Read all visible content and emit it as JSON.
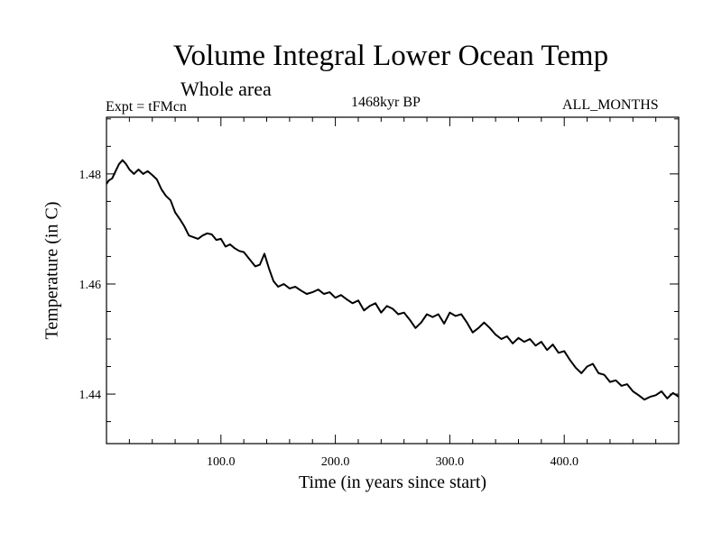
{
  "chart_data": {
    "type": "line",
    "title": "Volume Integral Lower Ocean Temp",
    "subtitle": "Whole area",
    "expt_label": "Expt = tFMcn",
    "era_label": "1468kyr BP",
    "months_label": "ALL_MONTHS",
    "xlabel": "Time (in years since start)",
    "ylabel": "Temperature (in C)",
    "xlim": [
      0,
      500
    ],
    "ylim": [
      1.431,
      1.4903
    ],
    "x_ticks": [
      {
        "value": 100,
        "label": "100.0"
      },
      {
        "value": 200,
        "label": "200.0"
      },
      {
        "value": 300,
        "label": "300.0"
      },
      {
        "value": 400,
        "label": "400.0"
      }
    ],
    "y_ticks": [
      {
        "value": 1.44,
        "label": "1.44"
      },
      {
        "value": 1.46,
        "label": "1.46"
      },
      {
        "value": 1.48,
        "label": "1.48"
      }
    ],
    "series": [
      {
        "name": "Volume Integral Lower Ocean Temp",
        "x": [
          0,
          2,
          5,
          8,
          11,
          14,
          17,
          20,
          24,
          28,
          32,
          36,
          40,
          44,
          48,
          52,
          56,
          60,
          64,
          68,
          72,
          76,
          80,
          84,
          88,
          92,
          96,
          100,
          104,
          108,
          112,
          116,
          120,
          125,
          130,
          134,
          138,
          142,
          146,
          150,
          155,
          160,
          165,
          170,
          175,
          180,
          185,
          190,
          195,
          200,
          205,
          210,
          215,
          220,
          225,
          230,
          235,
          240,
          245,
          250,
          255,
          260,
          265,
          270,
          275,
          280,
          285,
          290,
          295,
          300,
          305,
          310,
          315,
          320,
          325,
          330,
          335,
          340,
          345,
          350,
          355,
          360,
          365,
          370,
          375,
          380,
          385,
          390,
          395,
          400,
          405,
          410,
          415,
          420,
          425,
          430,
          435,
          440,
          445,
          450,
          455,
          460,
          465,
          470,
          475,
          480,
          485,
          490,
          495,
          500
        ],
        "y": [
          1.4782,
          1.4788,
          1.4792,
          1.4805,
          1.4818,
          1.4825,
          1.4818,
          1.4808,
          1.48,
          1.4808,
          1.48,
          1.4805,
          1.4798,
          1.479,
          1.4772,
          1.476,
          1.4752,
          1.473,
          1.4718,
          1.4705,
          1.4688,
          1.4685,
          1.4682,
          1.4688,
          1.4692,
          1.469,
          1.468,
          1.4682,
          1.4668,
          1.4672,
          1.4665,
          1.466,
          1.4658,
          1.4645,
          1.4632,
          1.4635,
          1.4655,
          1.4628,
          1.4605,
          1.4595,
          1.46,
          1.4592,
          1.4595,
          1.4588,
          1.4582,
          1.4585,
          1.459,
          1.4582,
          1.4585,
          1.4575,
          1.458,
          1.4572,
          1.4565,
          1.457,
          1.4552,
          1.456,
          1.4565,
          1.4548,
          1.456,
          1.4555,
          1.4545,
          1.4548,
          1.4535,
          1.452,
          1.453,
          1.4545,
          1.454,
          1.4545,
          1.4528,
          1.4548,
          1.4542,
          1.4545,
          1.453,
          1.4512,
          1.452,
          1.453,
          1.452,
          1.4508,
          1.45,
          1.4505,
          1.4492,
          1.4502,
          1.4495,
          1.45,
          1.4488,
          1.4495,
          1.448,
          1.449,
          1.4475,
          1.4478,
          1.4462,
          1.4448,
          1.4438,
          1.445,
          1.4455,
          1.4438,
          1.4435,
          1.4422,
          1.4425,
          1.4415,
          1.4418,
          1.4405,
          1.4398,
          1.439,
          1.4395,
          1.4398,
          1.4405,
          1.4392,
          1.4402,
          1.4395
        ]
      }
    ]
  }
}
